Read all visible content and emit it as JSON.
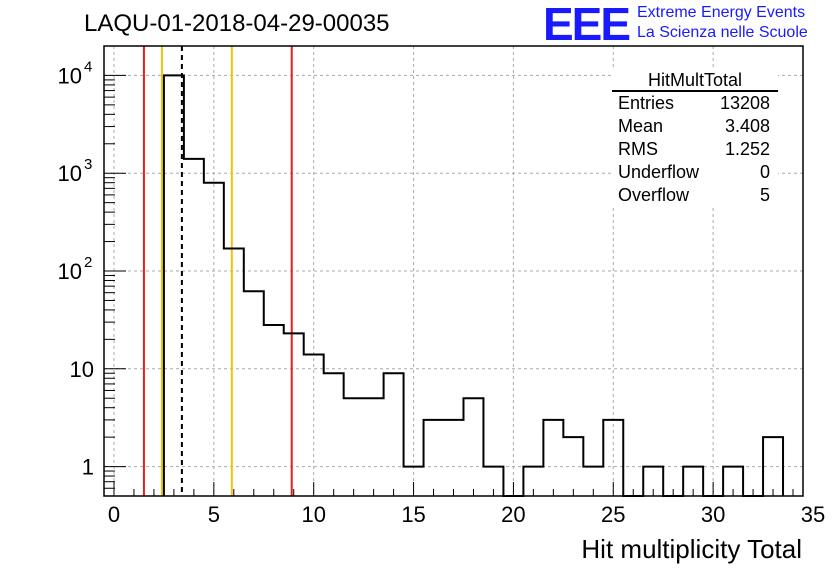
{
  "header": {
    "title": "LAQU-01-2018-04-29-00035",
    "logo_text": "EEE",
    "org_line1": "Extreme Energy Events",
    "org_line2": "La Scienza nelle Scuole"
  },
  "stats_box": {
    "title": "HitMultTotal",
    "rows": [
      {
        "label": "Entries",
        "value": "13208"
      },
      {
        "label": "Mean",
        "value": "3.408"
      },
      {
        "label": "RMS",
        "value": "1.252"
      },
      {
        "label": "Underflow",
        "value": "0"
      },
      {
        "label": "Overflow",
        "value": "5"
      }
    ]
  },
  "chart_data": {
    "type": "histogram",
    "title": "LAQU-01-2018-04-29-00035",
    "xlabel": "Hit multiplicity Total",
    "ylabel": "",
    "xlim": [
      -0.5,
      34.5
    ],
    "ylim": [
      0.5,
      20000
    ],
    "yscale": "log",
    "grid": true,
    "bin_width": 1,
    "bins_start": [
      2.5,
      3.5,
      4.5,
      5.5,
      6.5,
      7.5,
      8.5,
      9.5,
      10.5,
      11.5,
      12.5,
      13.5,
      14.5,
      15.5,
      16.5,
      17.5,
      18.5,
      19.5,
      20.5,
      21.5,
      22.5,
      23.5,
      24.5,
      25.5,
      26.5,
      27.5,
      28.5,
      29.5,
      30.5,
      31.5,
      32.5
    ],
    "counts": [
      10000,
      1400,
      800,
      170,
      62,
      28,
      23,
      14,
      9,
      5,
      5,
      9,
      1,
      3,
      3,
      5,
      1,
      0,
      1,
      3,
      2,
      1,
      3,
      0,
      1,
      0,
      1,
      0,
      1,
      0,
      2
    ],
    "x_ticks": [
      "0",
      "5",
      "10",
      "15",
      "20",
      "25",
      "30",
      "35"
    ],
    "x_tick_values": [
      0,
      5,
      10,
      15,
      20,
      25,
      30,
      35
    ],
    "y_ticks": [
      {
        "value": 10000,
        "base": "10",
        "exp": "4"
      },
      {
        "value": 1000,
        "base": "10",
        "exp": "3"
      },
      {
        "value": 100,
        "base": "10",
        "exp": "2"
      },
      {
        "value": 10,
        "base": "10",
        "exp": ""
      },
      {
        "value": 1,
        "base": "1",
        "exp": ""
      }
    ],
    "vertical_lines": [
      {
        "x": 1.5,
        "color": "#ee1c1c",
        "style": "solid"
      },
      {
        "x": 2.4,
        "color": "#f4c20d",
        "style": "solid"
      },
      {
        "x": 3.4,
        "color": "#000000",
        "style": "dashed"
      },
      {
        "x": 5.9,
        "color": "#f4c20d",
        "style": "solid"
      },
      {
        "x": 8.9,
        "color": "#ee1c1c",
        "style": "solid"
      }
    ]
  }
}
